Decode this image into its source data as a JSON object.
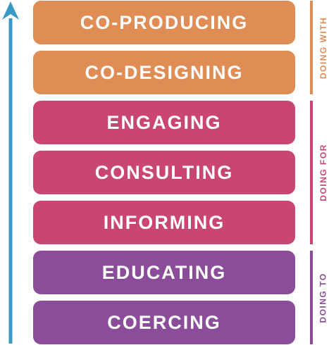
{
  "colors": {
    "arrow": "#3b98c4",
    "doing_with": "#e08c55",
    "doing_for": "#c94574",
    "doing_to": "#8b4c99"
  },
  "ladder": [
    {
      "label": "CO-PRODUCING",
      "group": "doing_with"
    },
    {
      "label": "CO-DESIGNING",
      "group": "doing_with"
    },
    {
      "label": "ENGAGING",
      "group": "doing_for"
    },
    {
      "label": "CONSULTING",
      "group": "doing_for"
    },
    {
      "label": "INFORMING",
      "group": "doing_for"
    },
    {
      "label": "EDUCATING",
      "group": "doing_to"
    },
    {
      "label": "COERCING",
      "group": "doing_to"
    }
  ],
  "groups": {
    "doing_with": {
      "label": "DOING WITH"
    },
    "doing_for": {
      "label": "DOING FOR"
    },
    "doing_to": {
      "label": "DOING TO"
    }
  }
}
